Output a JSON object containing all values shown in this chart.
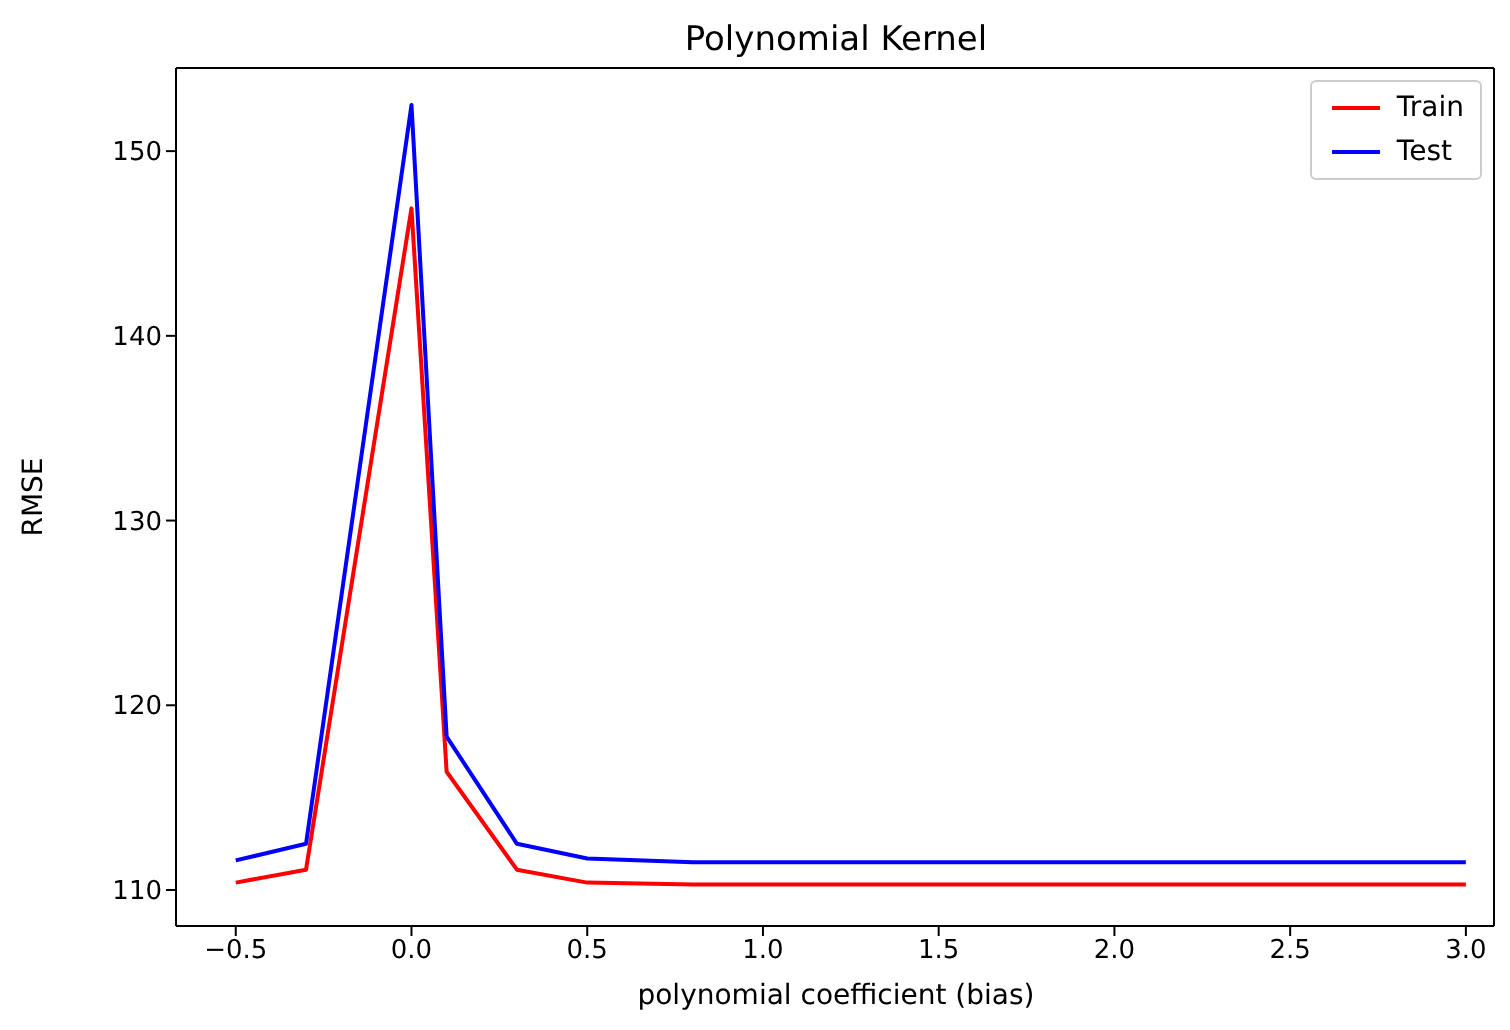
{
  "chart_data": {
    "type": "line",
    "title": "Polynomial Kernel",
    "xlabel": "polynomial coefficient (bias)",
    "ylabel": "RMSE",
    "x": [
      -0.5,
      -0.3,
      0.0,
      0.1,
      0.3,
      0.5,
      0.8,
      1.0,
      1.5,
      2.0,
      2.5,
      3.0
    ],
    "series": [
      {
        "name": "Train",
        "color": "#ff0000",
        "values": [
          110.4,
          111.1,
          146.9,
          116.4,
          111.1,
          110.4,
          110.3,
          110.3,
          110.3,
          110.3,
          110.3,
          110.3
        ]
      },
      {
        "name": "Test",
        "color": "#0000ff",
        "values": [
          111.6,
          112.5,
          152.5,
          118.3,
          112.5,
          111.7,
          111.5,
          111.5,
          111.5,
          111.5,
          111.5,
          111.5
        ]
      }
    ],
    "xlim": [
      -0.67,
      3.08
    ],
    "ylim": [
      108.05,
      154.5
    ],
    "xticks": [
      {
        "value": -0.5,
        "label": "−0.5"
      },
      {
        "value": 0,
        "label": "0.0"
      },
      {
        "value": 0.5,
        "label": "0.5"
      },
      {
        "value": 1,
        "label": "1.0"
      },
      {
        "value": 1.5,
        "label": "1.5"
      },
      {
        "value": 2,
        "label": "2.0"
      },
      {
        "value": 2.5,
        "label": "2.5"
      },
      {
        "value": 3,
        "label": "3.0"
      }
    ],
    "yticks": [
      110,
      120,
      130,
      140,
      150
    ],
    "grid": false,
    "legend": "top right",
    "marker": "none",
    "line_style": "solid"
  }
}
